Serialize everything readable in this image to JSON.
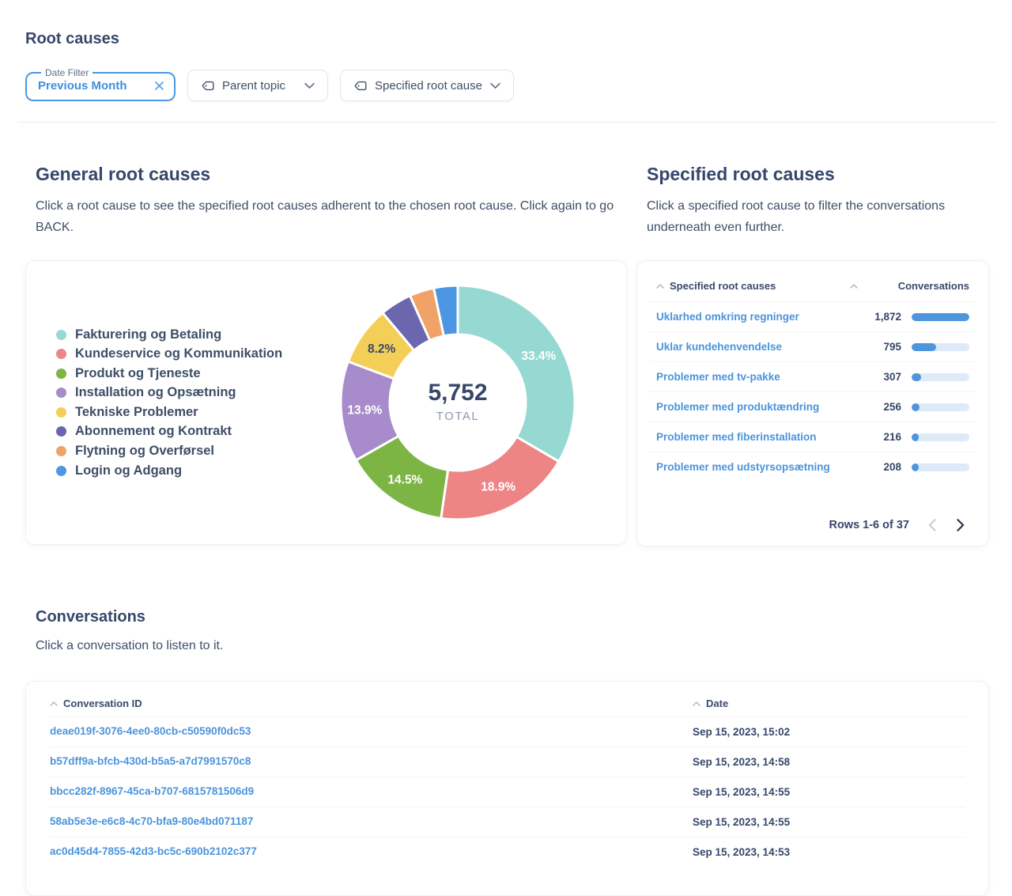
{
  "page": {
    "title": "Root causes"
  },
  "filters": {
    "date": {
      "label": "Date Filter",
      "value": "Previous Month"
    },
    "parent_topic": {
      "label": "Parent topic"
    },
    "specified_root_cause": {
      "label": "Specified root cause"
    }
  },
  "general": {
    "title": "General root causes",
    "subtitle": "Click a root cause to see the specified root causes adherent to the chosen root cause. Click again to go BACK."
  },
  "chart_data": {
    "type": "pie",
    "title": "General root causes",
    "total": "5,752",
    "total_label": "TOTAL",
    "legend_position": "left",
    "series": [
      {
        "name": "Fakturering og Betaling",
        "percent": 33.4,
        "color": "#96d9d3",
        "label": "33.4%",
        "label_color": "#ffffff"
      },
      {
        "name": "Kundeservice og Kommunikation",
        "percent": 18.9,
        "color": "#ee8585",
        "label": "18.9%",
        "label_color": "#ffffff"
      },
      {
        "name": "Produkt og Tjeneste",
        "percent": 14.5,
        "color": "#7cb544",
        "label": "14.5%",
        "label_color": "#ffffff"
      },
      {
        "name": "Installation og Opsætning",
        "percent": 13.9,
        "color": "#a88bcb",
        "label": "13.9%",
        "label_color": "#ffffff"
      },
      {
        "name": "Tekniske Problemer",
        "percent": 8.2,
        "color": "#f4cf58",
        "label": "8.2%",
        "label_color": "#36476b"
      },
      {
        "name": "Abonnement og Kontrakt",
        "percent": 4.4,
        "color": "#6a67ae",
        "label": "",
        "label_color": ""
      },
      {
        "name": "Flytning og Overførsel",
        "percent": 3.4,
        "color": "#f0a268",
        "label": "",
        "label_color": ""
      },
      {
        "name": "Login og Adgang",
        "percent": 3.3,
        "color": "#4d96e3",
        "label": "",
        "label_color": ""
      }
    ]
  },
  "specified": {
    "title": "Specified root causes",
    "subtitle": "Click a specified root cause to filter the conversations underneath even further.",
    "columns": {
      "causes": "Specified root causes",
      "conversations": "Conversations"
    },
    "max_value": 1872,
    "rows": [
      {
        "label": "Uklarhed omkring regninger",
        "value": "1,872",
        "numeric": 1872
      },
      {
        "label": "Uklar kundehenvendelse",
        "value": "795",
        "numeric": 795
      },
      {
        "label": "Problemer med tv-pakke",
        "value": "307",
        "numeric": 307
      },
      {
        "label": "Problemer med produktændring",
        "value": "256",
        "numeric": 256
      },
      {
        "label": "Problemer med fiberinstallation",
        "value": "216",
        "numeric": 216
      },
      {
        "label": "Problemer med udstyrsopsætning",
        "value": "208",
        "numeric": 208
      }
    ],
    "pagination": "Rows 1-6 of 37"
  },
  "conversations": {
    "title": "Conversations",
    "subtitle": "Click a conversation to listen to it.",
    "columns": {
      "id": "Conversation ID",
      "date": "Date"
    },
    "rows": [
      {
        "id": "deae019f-3076-4ee0-80cb-c50590f0dc53",
        "date": "Sep 15, 2023, 15:02"
      },
      {
        "id": "b57dff9a-bfcb-430d-b5a5-a7d7991570c8",
        "date": "Sep 15, 2023, 14:58"
      },
      {
        "id": "bbcc282f-8967-45ca-b707-6815781506d9",
        "date": "Sep 15, 2023, 14:55"
      },
      {
        "id": "58ab5e3e-e6c8-4c70-bfa9-80e4bd071187",
        "date": "Sep 15, 2023, 14:55"
      },
      {
        "id": "ac0d45d4-7855-42d3-bc5c-690b2102c377",
        "date": "Sep 15, 2023, 14:53"
      }
    ]
  },
  "colors": {
    "accent_blue": "#4a97e4",
    "link_blue": "#4a94dc",
    "bar_fill": "#4d96dd",
    "bar_track": "#ddeaf8",
    "heading": "#36476b"
  }
}
